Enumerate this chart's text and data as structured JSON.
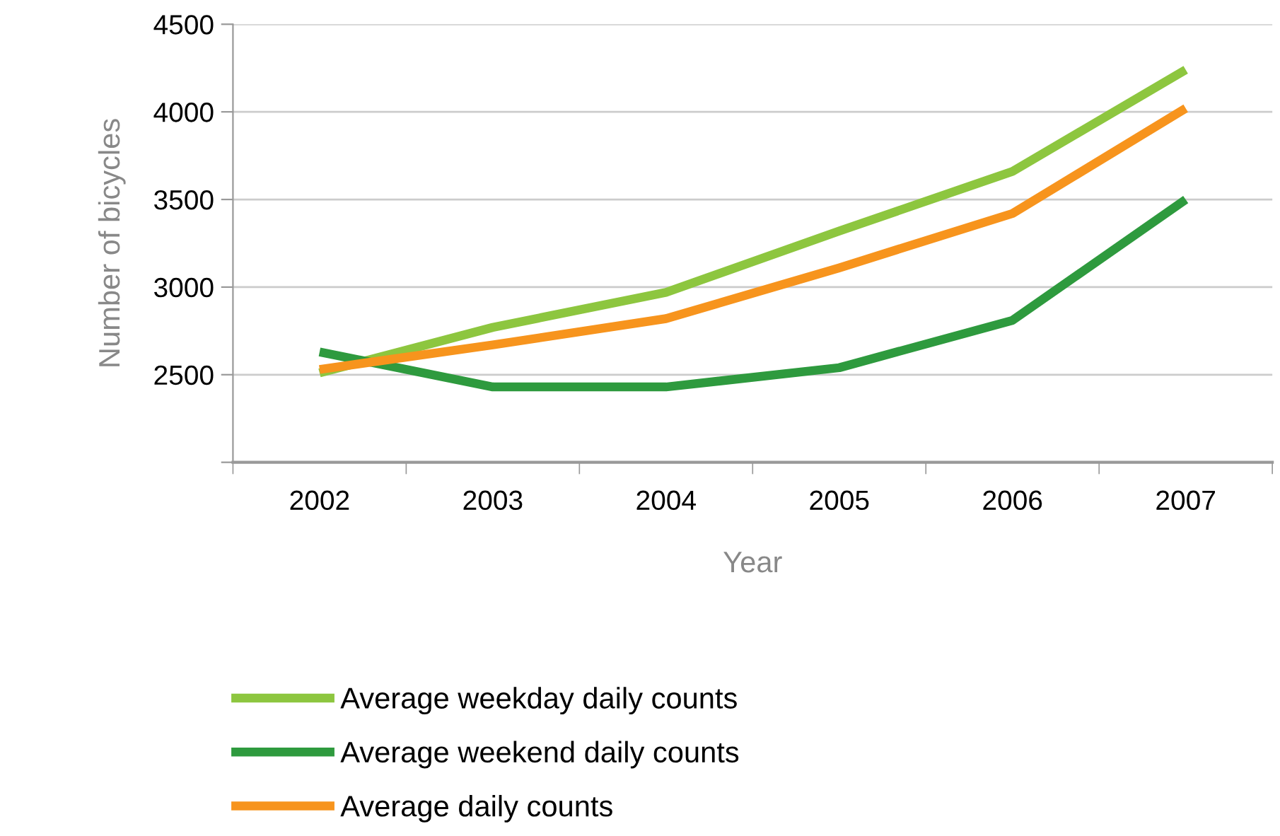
{
  "chart_data": {
    "type": "line",
    "xlabel": "Year",
    "ylabel": "Number of bicycles",
    "categories": [
      "2002",
      "2003",
      "2004",
      "2005",
      "2006",
      "2007"
    ],
    "series": [
      {
        "name": "Average weekday daily counts",
        "color": "#8dc63f",
        "values": [
          2510,
          2770,
          2970,
          3320,
          3660,
          4240
        ]
      },
      {
        "name": "Average weekend daily counts",
        "color": "#2e9a3e",
        "values": [
          2630,
          2430,
          2430,
          2540,
          2810,
          3500
        ]
      },
      {
        "name": "Average daily counts",
        "color": "#f7941d",
        "values": [
          2530,
          2670,
          2820,
          3110,
          3420,
          4020
        ]
      }
    ],
    "ylim": [
      2000,
      4500
    ],
    "yticks": [
      {
        "value": 2000,
        "label": null
      },
      2500,
      3000,
      3500,
      4000,
      4500
    ],
    "grid": "y",
    "legend": "bottom",
    "marker": "none",
    "line_style": "solid"
  }
}
